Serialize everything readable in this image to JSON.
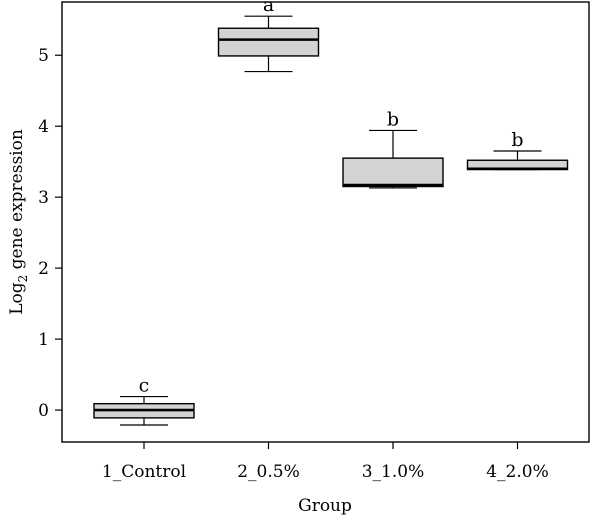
{
  "chart_data": {
    "type": "box",
    "title": "",
    "xlabel": "Group",
    "ylabel": {
      "base": "Log",
      "subscript": "2",
      "rest": " gene expression"
    },
    "ylim": [
      -0.45,
      5.75
    ],
    "yticks": [
      0,
      1,
      2,
      3,
      4,
      5
    ],
    "fill_color": "#d3d3d3",
    "grid": false,
    "legend": "none",
    "categories": [
      "1_Control",
      "2_0.5%",
      "3_1.0%",
      "4_2.0%"
    ],
    "boxes": [
      {
        "group": "1_Control",
        "min": -0.21,
        "q1": -0.11,
        "median": 0.0,
        "q3": 0.09,
        "max": 0.19,
        "letter": "c"
      },
      {
        "group": "2_0.5%",
        "min": 4.77,
        "q1": 4.99,
        "median": 5.22,
        "q3": 5.38,
        "max": 5.55,
        "letter": "a"
      },
      {
        "group": "3_1.0%",
        "min": 3.13,
        "q1": 3.15,
        "median": 3.17,
        "q3": 3.55,
        "max": 3.94,
        "letter": "b"
      },
      {
        "group": "4_2.0%",
        "min": 3.39,
        "q1": 3.39,
        "median": 3.4,
        "q3": 3.52,
        "max": 3.65,
        "letter": "b"
      }
    ]
  }
}
